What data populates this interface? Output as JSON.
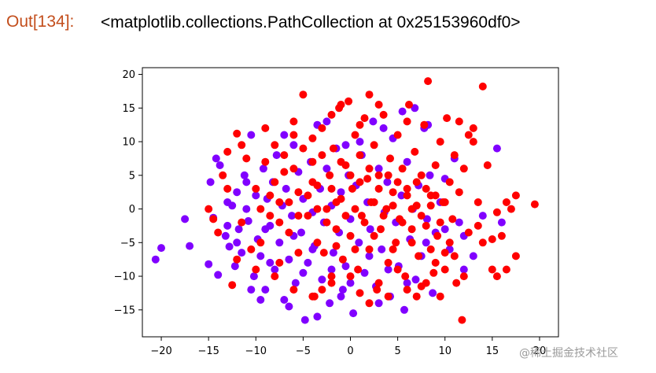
{
  "cell": {
    "prompt": "Out[134]:",
    "output": "<matplotlib.collections.PathCollection at 0x25153960df0>"
  },
  "watermark": "@稀土掘金技术社区",
  "chart_data": {
    "type": "scatter",
    "title": "",
    "xlabel": "",
    "ylabel": "",
    "xlim": [
      -22,
      22
    ],
    "ylim": [
      -19,
      21
    ],
    "xticks": [
      -20,
      -15,
      -10,
      -5,
      0,
      5,
      10,
      15,
      20
    ],
    "yticks": [
      -15,
      -10,
      -5,
      0,
      5,
      10,
      15,
      20
    ],
    "grid": false,
    "legend": "none",
    "series": [
      {
        "color": "#8000ff",
        "points": [
          [
            -20.6,
            -7.5
          ],
          [
            -20,
            -5.8
          ],
          [
            -17.5,
            -1.5
          ],
          [
            -17,
            -5.5
          ],
          [
            -15,
            -8.2
          ],
          [
            -14.8,
            4
          ],
          [
            -14.5,
            -1.3
          ],
          [
            -14.2,
            7.5
          ],
          [
            -14,
            -9.8
          ],
          [
            -13.8,
            6.5
          ],
          [
            -13.2,
            -4
          ],
          [
            -13,
            -2.5
          ],
          [
            -12.8,
            -5.6
          ],
          [
            -12.5,
            0.5
          ],
          [
            -12.2,
            -8.5
          ],
          [
            -12,
            2.5
          ],
          [
            -11.8,
            -3
          ],
          [
            -11.5,
            -6.5
          ],
          [
            -11.2,
            5
          ],
          [
            -11,
            0
          ],
          [
            -10.8,
            -1.8
          ],
          [
            -10.5,
            11
          ],
          [
            -10.2,
            -10
          ],
          [
            -10,
            2
          ],
          [
            -9.8,
            -4.5
          ],
          [
            -9.5,
            -7
          ],
          [
            -9.2,
            6
          ],
          [
            -9,
            -12
          ],
          [
            -8.8,
            1.5
          ],
          [
            -8.5,
            -2.5
          ],
          [
            -8.2,
            4
          ],
          [
            -8,
            -9
          ],
          [
            -7.8,
            8
          ],
          [
            -7.5,
            -5
          ],
          [
            -7.2,
            0.5
          ],
          [
            -7,
            -13.5
          ],
          [
            -6.8,
            3
          ],
          [
            -6.5,
            -7.5
          ],
          [
            -6.2,
            -1
          ],
          [
            -6,
            9.5
          ],
          [
            -5.8,
            -11
          ],
          [
            -5.5,
            5.5
          ],
          [
            -5.2,
            -3.5
          ],
          [
            -5,
            1.5
          ],
          [
            -4.8,
            -16.5
          ],
          [
            -4.5,
            -8
          ],
          [
            -4.2,
            7
          ],
          [
            -4,
            -0.5
          ],
          [
            -3.8,
            -5.5
          ],
          [
            -3.5,
            12.5
          ],
          [
            -3.2,
            3
          ],
          [
            -3,
            -10.5
          ],
          [
            -2.8,
            -2
          ],
          [
            -2.5,
            6
          ],
          [
            -2.2,
            -14
          ],
          [
            -2,
            0.5
          ],
          [
            -1.8,
            -6.5
          ],
          [
            -1.5,
            9
          ],
          [
            -1.2,
            -3.5
          ],
          [
            -1,
            2.5
          ],
          [
            -0.8,
            -12
          ],
          [
            -0.5,
            -8.5
          ],
          [
            -0.2,
            5
          ],
          [
            0,
            -1.5
          ],
          [
            0.3,
            -15.5
          ],
          [
            0.6,
            3.5
          ],
          [
            0.9,
            -5
          ],
          [
            1.2,
            8
          ],
          [
            1.5,
            -9.5
          ],
          [
            1.8,
            1
          ],
          [
            2.1,
            -3
          ],
          [
            2.4,
            13
          ],
          [
            2.7,
            -11.5
          ],
          [
            3,
            6
          ],
          [
            3.3,
            -6
          ],
          [
            3.6,
            -0.5
          ],
          [
            3.9,
            4
          ],
          [
            4.2,
            -13
          ],
          [
            4.5,
            10.5
          ],
          [
            4.8,
            -2
          ],
          [
            5.1,
            -8.5
          ],
          [
            5.4,
            2
          ],
          [
            5.7,
            -15
          ],
          [
            6,
            7
          ],
          [
            6.3,
            -4.5
          ],
          [
            6.6,
            0
          ],
          [
            6.9,
            -10.5
          ],
          [
            7.2,
            3.5
          ],
          [
            7.5,
            -7
          ],
          [
            7.8,
            12
          ],
          [
            8.1,
            -1.5
          ],
          [
            8.4,
            5
          ],
          [
            8.7,
            -12.5
          ],
          [
            9,
            -3.5
          ],
          [
            9.5,
            1
          ],
          [
            10,
            4.5
          ],
          [
            10.5,
            -6
          ],
          [
            11,
            7.5
          ],
          [
            11.5,
            -2
          ],
          [
            12,
            -9
          ],
          [
            13,
            -7
          ],
          [
            14,
            -1
          ],
          [
            15.5,
            9
          ],
          [
            16,
            -2
          ],
          [
            5.5,
            14.5
          ],
          [
            3.5,
            12
          ],
          [
            -2.5,
            13
          ],
          [
            -7,
            11
          ],
          [
            6.8,
            15
          ],
          [
            8.2,
            12.5
          ],
          [
            1,
            10
          ],
          [
            -0.5,
            9.5
          ],
          [
            -3.5,
            -16
          ],
          [
            -8.5,
            -8
          ],
          [
            -10.5,
            -12
          ],
          [
            -12,
            -5
          ],
          [
            -13,
            1
          ],
          [
            -11,
            4
          ],
          [
            -9,
            -3
          ],
          [
            -6,
            -4
          ],
          [
            -4,
            -6
          ],
          [
            -2,
            -9
          ],
          [
            0,
            -11
          ],
          [
            2,
            -7
          ],
          [
            4,
            -9
          ],
          [
            6,
            -11
          ],
          [
            8,
            -5
          ],
          [
            10,
            -3
          ],
          [
            12,
            -4
          ],
          [
            -5,
            -9.5
          ],
          [
            -1,
            -13
          ],
          [
            3,
            -14
          ],
          [
            -6.5,
            -14.5
          ],
          [
            -9.5,
            -13.5
          ]
        ]
      },
      {
        "color": "#ff0000",
        "points": [
          [
            -15,
            0
          ],
          [
            -14.5,
            -1.5
          ],
          [
            -13.5,
            5
          ],
          [
            -13,
            8.5
          ],
          [
            -12.5,
            -11.3
          ],
          [
            -12,
            11.2
          ],
          [
            -11.5,
            -2
          ],
          [
            -11,
            7.5
          ],
          [
            -10,
            3
          ],
          [
            -9.5,
            -5
          ],
          [
            -9,
            12
          ],
          [
            -8.5,
            -1
          ],
          [
            -8,
            9.5
          ],
          [
            -7.5,
            1
          ],
          [
            -7,
            5.5
          ],
          [
            -6.5,
            -3.5
          ],
          [
            -6,
            11
          ],
          [
            -5.5,
            2.5
          ],
          [
            -5,
            17
          ],
          [
            -4.5,
            -1
          ],
          [
            -4,
            7
          ],
          [
            -3.8,
            -13
          ],
          [
            -3.5,
            3.5
          ],
          [
            -3,
            12
          ],
          [
            -2.8,
            -6.5
          ],
          [
            -2.5,
            0
          ],
          [
            -2.2,
            5
          ],
          [
            -2,
            -10
          ],
          [
            -1.8,
            9
          ],
          [
            -1.5,
            -3
          ],
          [
            -1.2,
            15
          ],
          [
            -1,
            1.5
          ],
          [
            -0.8,
            -7.5
          ],
          [
            -0.5,
            6.5
          ],
          [
            -0.2,
            16
          ],
          [
            0,
            -4
          ],
          [
            0.2,
            3
          ],
          [
            0.5,
            11
          ],
          [
            0.8,
            -9
          ],
          [
            1,
            8
          ],
          [
            1.2,
            -1
          ],
          [
            1.5,
            13.5
          ],
          [
            1.8,
            4.5
          ],
          [
            2,
            -6
          ],
          [
            2.2,
            1
          ],
          [
            2.5,
            9.5
          ],
          [
            2.8,
            -12
          ],
          [
            3,
            5
          ],
          [
            3.2,
            -3
          ],
          [
            3.5,
            14
          ],
          [
            3.8,
            0
          ],
          [
            4,
            -8
          ],
          [
            4.2,
            7.5
          ],
          [
            4.5,
            2.5
          ],
          [
            4.8,
            -5
          ],
          [
            5,
            11
          ],
          [
            5.2,
            -1.5
          ],
          [
            5.5,
            6
          ],
          [
            5.8,
            -10
          ],
          [
            6,
            3
          ],
          [
            6.2,
            15.5
          ],
          [
            6.5,
            -3
          ],
          [
            6.8,
            8.5
          ],
          [
            7,
            0.5
          ],
          [
            7.2,
            -7
          ],
          [
            7.5,
            5
          ],
          [
            7.8,
            12.5
          ],
          [
            8,
            -2.5
          ],
          [
            8.2,
            19
          ],
          [
            8.5,
            2
          ],
          [
            8.8,
            -9.5
          ],
          [
            9,
            6.5
          ],
          [
            9.2,
            -4
          ],
          [
            9.5,
            10
          ],
          [
            9.8,
            1
          ],
          [
            10,
            -6.5
          ],
          [
            10.2,
            13.5
          ],
          [
            10.5,
            4
          ],
          [
            10.8,
            -1.5
          ],
          [
            11,
            8
          ],
          [
            11.2,
            -11
          ],
          [
            11.5,
            2.5
          ],
          [
            11.8,
            -16.5
          ],
          [
            12,
            6
          ],
          [
            12.5,
            -3.5
          ],
          [
            13,
            12
          ],
          [
            13.5,
            1
          ],
          [
            14,
            -5
          ],
          [
            14.5,
            6.5
          ],
          [
            15,
            -9
          ],
          [
            15.5,
            -0.5
          ],
          [
            16,
            -4
          ],
          [
            16.5,
            1
          ],
          [
            17,
            0
          ],
          [
            17.5,
            2
          ],
          [
            19.5,
            0.7
          ],
          [
            14,
            18.2
          ],
          [
            12.5,
            11
          ],
          [
            11.5,
            13
          ],
          [
            13,
            10
          ],
          [
            15,
            -4.5
          ],
          [
            16.5,
            -9
          ],
          [
            15.5,
            -10
          ],
          [
            12,
            -10
          ],
          [
            10,
            -9
          ],
          [
            8,
            -11
          ],
          [
            6,
            -12
          ],
          [
            4,
            -13
          ],
          [
            2,
            -14
          ],
          [
            0,
            -10
          ],
          [
            -2,
            -11
          ],
          [
            -4,
            -13
          ],
          [
            -6,
            -12
          ],
          [
            -8,
            -10
          ],
          [
            -10,
            -9
          ],
          [
            -3,
            -12
          ],
          [
            1,
            -12.5
          ],
          [
            3,
            -11
          ],
          [
            5,
            -9
          ],
          [
            7,
            -13
          ],
          [
            9,
            -8
          ],
          [
            11,
            -7
          ],
          [
            -7.5,
            -8
          ],
          [
            -5.5,
            -6.5
          ],
          [
            -3.5,
            -5
          ],
          [
            -1.5,
            -5.5
          ],
          [
            0.5,
            -6
          ],
          [
            2.5,
            -4
          ],
          [
            4.5,
            -6
          ],
          [
            6.5,
            -5
          ],
          [
            8.5,
            -6
          ],
          [
            10.5,
            -5
          ],
          [
            -9,
            7
          ],
          [
            -8,
            4
          ],
          [
            -7,
            8
          ],
          [
            -6,
            6
          ],
          [
            -5,
            9
          ],
          [
            -4,
            4
          ],
          [
            -3,
            8
          ],
          [
            -2,
            3
          ],
          [
            -1,
            7
          ],
          [
            0,
            5
          ],
          [
            1,
            4
          ],
          [
            2,
            6
          ],
          [
            3,
            3
          ],
          [
            4,
            5
          ],
          [
            5,
            4
          ],
          [
            6,
            2
          ],
          [
            7,
            4
          ],
          [
            8,
            3
          ],
          [
            9,
            2
          ],
          [
            10,
            1
          ],
          [
            -9.5,
            0
          ],
          [
            -8.5,
            2
          ],
          [
            -7.5,
            -2
          ],
          [
            -6.5,
            1
          ],
          [
            -5.5,
            -1
          ],
          [
            -4.5,
            2
          ],
          [
            -3.5,
            0
          ],
          [
            -2.5,
            -2
          ],
          [
            -1.5,
            1
          ],
          [
            -0.5,
            -1
          ],
          [
            0.5,
            0
          ],
          [
            1.5,
            -2
          ],
          [
            2.5,
            1
          ],
          [
            3.5,
            -1
          ],
          [
            4.5,
            0.5
          ],
          [
            5.5,
            -2
          ],
          [
            6.5,
            0
          ],
          [
            7.5,
            -1
          ],
          [
            8.5,
            0.5
          ],
          [
            9.5,
            -2
          ],
          [
            -4,
            10.5
          ],
          [
            -2,
            14
          ],
          [
            1,
            12.5
          ],
          [
            3,
            15.5
          ],
          [
            6,
            13
          ],
          [
            -6,
            13
          ],
          [
            -1,
            15.5
          ],
          [
            2,
            17
          ],
          [
            -13,
            3
          ],
          [
            -11.5,
            9.5
          ],
          [
            13.5,
            -2.5
          ],
          [
            17.5,
            -7
          ],
          [
            -14,
            -3.5
          ],
          [
            -12,
            -7.5
          ],
          [
            -10.5,
            -6
          ],
          [
            9.5,
            -13
          ],
          [
            7.5,
            -11.5
          ]
        ]
      }
    ]
  }
}
